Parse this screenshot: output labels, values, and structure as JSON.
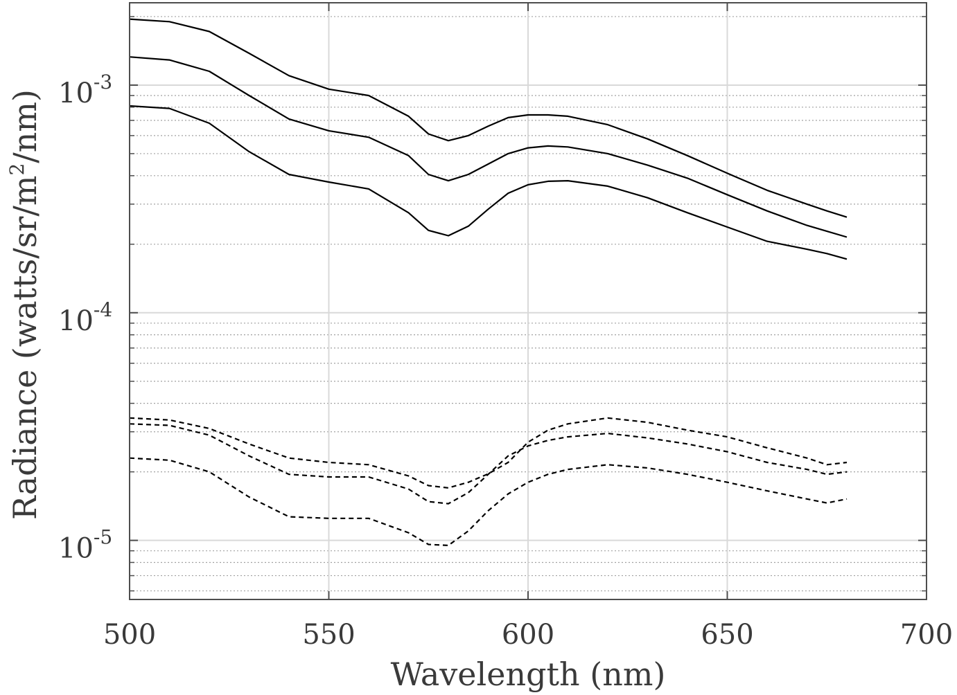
{
  "chart_data": {
    "type": "line",
    "title": "",
    "xlabel": "Wavelength (nm)",
    "ylabel": {
      "prefix": "Radiance (watts/sr/m",
      "superscript": "2",
      "suffix": "/nm)"
    },
    "xlim": [
      500,
      700
    ],
    "xticks": [
      "500",
      "550",
      "600",
      "650",
      "700"
    ],
    "ylim": [
      5.5e-06,
      0.0023
    ],
    "yscale": "log",
    "yticks": [
      {
        "value": 1e-05,
        "base": "10",
        "exp": "-5"
      },
      {
        "value": 0.0001,
        "base": "10",
        "exp": "-4"
      },
      {
        "value": 0.001,
        "base": "10",
        "exp": "-3"
      }
    ],
    "grid": true,
    "minor_grid": true,
    "colors": {
      "line": "#000000",
      "grid": "#d9d9d9",
      "axis": "#4d4d4d"
    },
    "x": [
      500,
      510,
      520,
      530,
      540,
      550,
      560,
      570,
      575,
      580,
      585,
      590,
      595,
      600,
      605,
      610,
      620,
      630,
      640,
      650,
      660,
      670,
      675,
      680
    ],
    "series": [
      {
        "style": "solid",
        "values": [
          0.00195,
          0.0019,
          0.00172,
          0.00138,
          0.0011,
          0.00096,
          0.0009,
          0.00073,
          0.00061,
          0.00057,
          0.0006,
          0.00066,
          0.00072,
          0.00074,
          0.00074,
          0.00073,
          0.00067,
          0.00058,
          0.00049,
          0.00041,
          0.000345,
          0.0003,
          0.00028,
          0.000263
        ]
      },
      {
        "style": "solid",
        "values": [
          0.00133,
          0.00129,
          0.00115,
          0.0009,
          0.00071,
          0.00063,
          0.00059,
          0.00049,
          0.000405,
          0.00038,
          0.000405,
          0.00045,
          0.0005,
          0.00053,
          0.00054,
          0.000535,
          0.0005,
          0.000445,
          0.00039,
          0.00033,
          0.00028,
          0.000242,
          0.000228,
          0.000215
        ]
      },
      {
        "style": "solid",
        "values": [
          0.00081,
          0.00079,
          0.00068,
          0.00051,
          0.000405,
          0.000375,
          0.00035,
          0.000275,
          0.00023,
          0.000218,
          0.00024,
          0.000285,
          0.000335,
          0.000365,
          0.000378,
          0.00038,
          0.00036,
          0.00032,
          0.000275,
          0.000238,
          0.000206,
          0.00019,
          0.000182,
          0.000172
        ]
      },
      {
        "style": "dashed",
        "values": [
          3.45e-05,
          3.38e-05,
          3.1e-05,
          2.65e-05,
          2.3e-05,
          2.2e-05,
          2.15e-05,
          1.92e-05,
          1.74e-05,
          1.7e-05,
          1.8e-05,
          1.96e-05,
          2.2e-05,
          2.7e-05,
          3.05e-05,
          3.25e-05,
          3.45e-05,
          3.3e-05,
          3.05e-05,
          2.85e-05,
          2.55e-05,
          2.3e-05,
          2.15e-05,
          2.2e-05
        ]
      },
      {
        "style": "dashed",
        "values": [
          3.25e-05,
          3.2e-05,
          2.9e-05,
          2.35e-05,
          1.95e-05,
          1.9e-05,
          1.9e-05,
          1.68e-05,
          1.48e-05,
          1.45e-05,
          1.62e-05,
          1.95e-05,
          2.35e-05,
          2.6e-05,
          2.75e-05,
          2.85e-05,
          2.95e-05,
          2.82e-05,
          2.65e-05,
          2.45e-05,
          2.2e-05,
          2.05e-05,
          1.95e-05,
          2e-05
        ]
      },
      {
        "style": "dashed",
        "values": [
          2.3e-05,
          2.25e-05,
          2e-05,
          1.55e-05,
          1.27e-05,
          1.25e-05,
          1.25e-05,
          1.08e-05,
          9.6e-06,
          9.5e-06,
          1.1e-05,
          1.35e-05,
          1.6e-05,
          1.8e-05,
          1.95e-05,
          2.05e-05,
          2.15e-05,
          2.08e-05,
          1.95e-05,
          1.8e-05,
          1.65e-05,
          1.52e-05,
          1.46e-05,
          1.52e-05
        ]
      }
    ]
  }
}
